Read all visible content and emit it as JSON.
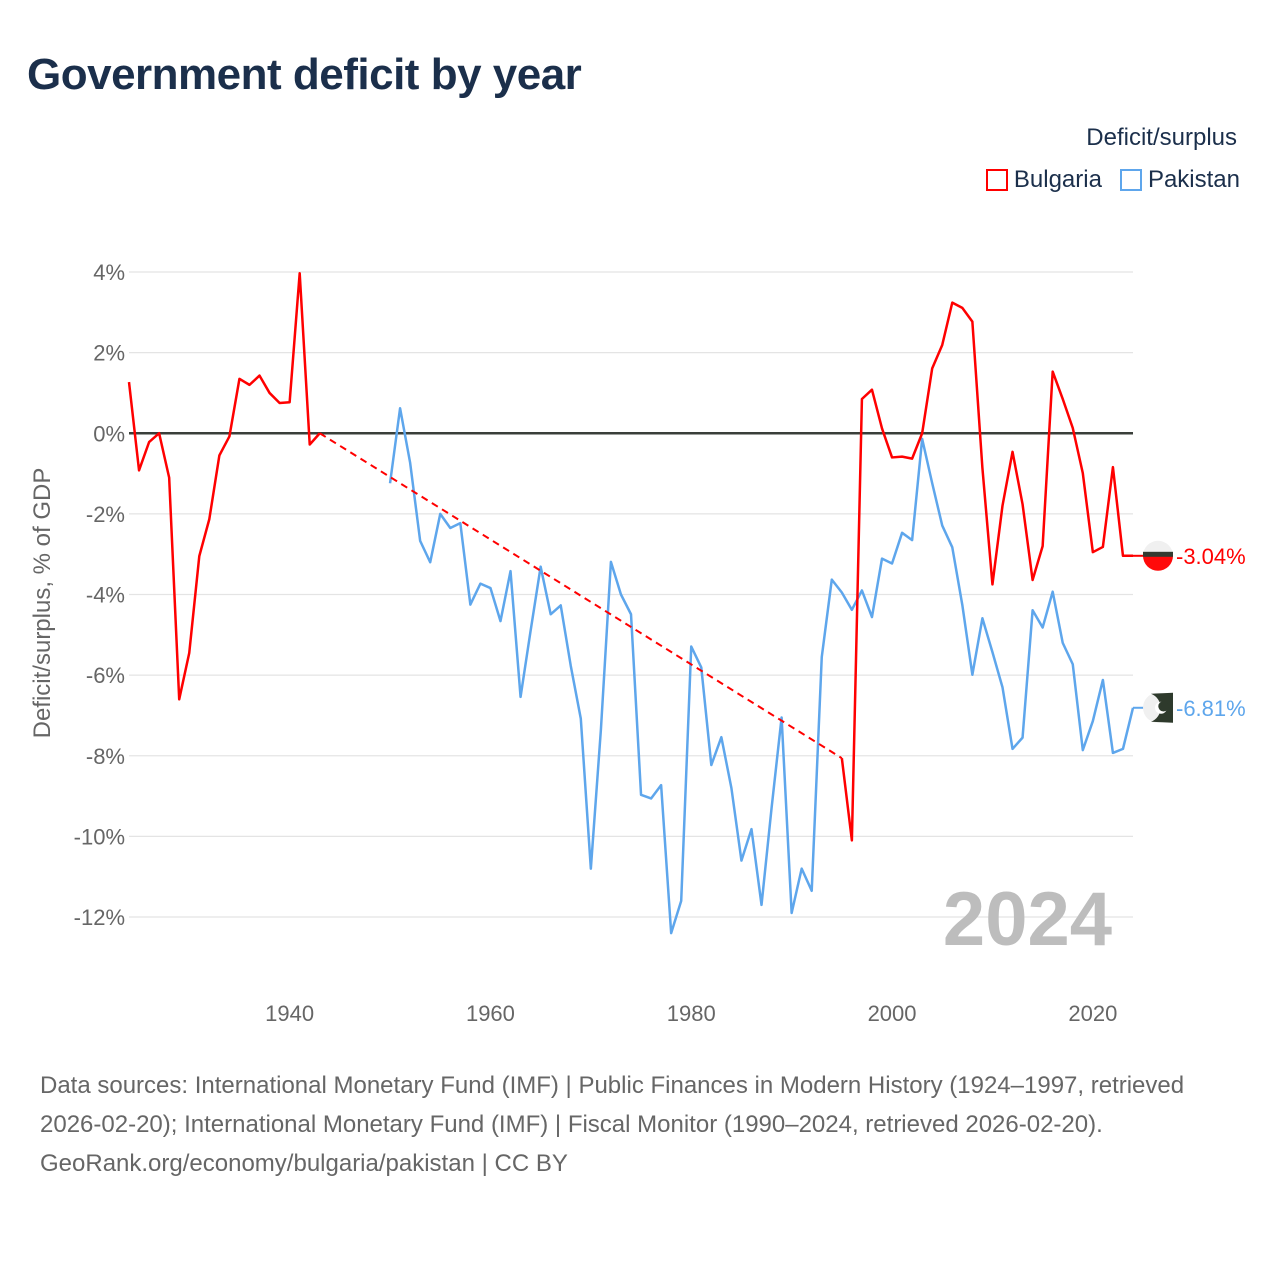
{
  "title": "Government deficit by year",
  "legend": {
    "title": "Deficit/surplus",
    "items": [
      {
        "label": "Bulgaria",
        "color": "#ff0000"
      },
      {
        "label": "Pakistan",
        "color": "#5ea6ec"
      }
    ]
  },
  "chart_data": {
    "type": "line",
    "title": "Government deficit by year",
    "xlabel": "",
    "ylabel": "Deficit/surplus, % of GDP",
    "xlim": [
      1924,
      2024
    ],
    "ylim": [
      -12,
      4
    ],
    "x_ticks": [
      "1940",
      "1960",
      "1980",
      "2000",
      "2020"
    ],
    "x_tick_values": [
      1940,
      1960,
      1980,
      2000,
      2020
    ],
    "y_ticks": [
      "4%",
      "2%",
      "0%",
      "-2%",
      "-4%",
      "-6%",
      "-8%",
      "-10%",
      "-12%"
    ],
    "y_tick_values": [
      4,
      2,
      0,
      -2,
      -4,
      -6,
      -8,
      -10,
      -12
    ],
    "grid": true,
    "legend_position": "top-right",
    "year_annotation": "2024",
    "series": [
      {
        "name": "Bulgaria",
        "color": "#ff0000",
        "end_label": "-3.04%",
        "gap_interpolated": [
          1943,
          1995
        ],
        "points": [
          [
            1924,
            1.27
          ],
          [
            1925,
            -0.92
          ],
          [
            1926,
            -0.22
          ],
          [
            1927,
            0
          ],
          [
            1928,
            -1.1
          ],
          [
            1929,
            -6.6
          ],
          [
            1930,
            -5.45
          ],
          [
            1931,
            -3.05
          ],
          [
            1932,
            -2.13
          ],
          [
            1933,
            -0.55
          ],
          [
            1934,
            -0.08
          ],
          [
            1935,
            1.35
          ],
          [
            1936,
            1.2
          ],
          [
            1937,
            1.43
          ],
          [
            1938,
            1.0
          ],
          [
            1939,
            0.75
          ],
          [
            1940,
            0.77
          ],
          [
            1941,
            3.97
          ],
          [
            1942,
            -0.28
          ],
          [
            1943,
            0.0
          ],
          [
            1995,
            -8.06
          ],
          [
            1996,
            -10.1
          ],
          [
            1997,
            0.85
          ],
          [
            1998,
            1.08
          ],
          [
            1999,
            0.12
          ],
          [
            2000,
            -0.6
          ],
          [
            2001,
            -0.58
          ],
          [
            2002,
            -0.63
          ],
          [
            2003,
            0.0
          ],
          [
            2004,
            1.61
          ],
          [
            2005,
            2.19
          ],
          [
            2006,
            3.24
          ],
          [
            2007,
            3.11
          ],
          [
            2008,
            2.77
          ],
          [
            2009,
            -0.86
          ],
          [
            2010,
            -3.75
          ],
          [
            2011,
            -1.8
          ],
          [
            2012,
            -0.46
          ],
          [
            2013,
            -1.76
          ],
          [
            2014,
            -3.64
          ],
          [
            2015,
            -2.8
          ],
          [
            2016,
            1.53
          ],
          [
            2017,
            0.85
          ],
          [
            2018,
            0.13
          ],
          [
            2019,
            -0.99
          ],
          [
            2020,
            -2.95
          ],
          [
            2021,
            -2.82
          ],
          [
            2022,
            -0.84
          ],
          [
            2023,
            -3.04
          ],
          [
            2024,
            -3.04
          ]
        ]
      },
      {
        "name": "Pakistan",
        "color": "#5ea6ec",
        "end_label": "-6.81%",
        "points": [
          [
            1950,
            -1.24
          ],
          [
            1951,
            0.62
          ],
          [
            1952,
            -0.73
          ],
          [
            1953,
            -2.67
          ],
          [
            1954,
            -3.2
          ],
          [
            1955,
            -2.0
          ],
          [
            1956,
            -2.35
          ],
          [
            1957,
            -2.23
          ],
          [
            1958,
            -4.25
          ],
          [
            1959,
            -3.73
          ],
          [
            1960,
            -3.84
          ],
          [
            1961,
            -4.66
          ],
          [
            1962,
            -3.42
          ],
          [
            1963,
            -6.54
          ],
          [
            1964,
            -4.9
          ],
          [
            1965,
            -3.31
          ],
          [
            1966,
            -4.49
          ],
          [
            1967,
            -4.27
          ],
          [
            1968,
            -5.77
          ],
          [
            1969,
            -7.08
          ],
          [
            1970,
            -10.8
          ],
          [
            1971,
            -7.36
          ],
          [
            1972,
            -3.19
          ],
          [
            1973,
            -4.0
          ],
          [
            1974,
            -4.49
          ],
          [
            1975,
            -8.97
          ],
          [
            1976,
            -9.06
          ],
          [
            1977,
            -8.73
          ],
          [
            1978,
            -12.4
          ],
          [
            1979,
            -11.6
          ],
          [
            1980,
            -5.29
          ],
          [
            1981,
            -5.81
          ],
          [
            1982,
            -8.23
          ],
          [
            1983,
            -7.54
          ],
          [
            1984,
            -8.8
          ],
          [
            1985,
            -10.6
          ],
          [
            1986,
            -9.82
          ],
          [
            1987,
            -11.7
          ],
          [
            1988,
            -9.3
          ],
          [
            1989,
            -7.05
          ],
          [
            1990,
            -11.9
          ],
          [
            1991,
            -10.8
          ],
          [
            1992,
            -11.35
          ],
          [
            1993,
            -5.55
          ],
          [
            1994,
            -3.63
          ],
          [
            1995,
            -3.95
          ],
          [
            1996,
            -4.38
          ],
          [
            1997,
            -3.9
          ],
          [
            1998,
            -4.56
          ],
          [
            1999,
            -3.11
          ],
          [
            2000,
            -3.23
          ],
          [
            2001,
            -2.47
          ],
          [
            2002,
            -2.65
          ],
          [
            2003,
            -0.14
          ],
          [
            2004,
            -1.24
          ],
          [
            2005,
            -2.29
          ],
          [
            2006,
            -2.83
          ],
          [
            2007,
            -4.26
          ],
          [
            2008,
            -5.99
          ],
          [
            2009,
            -4.59
          ],
          [
            2010,
            -5.43
          ],
          [
            2011,
            -6.3
          ],
          [
            2012,
            -7.83
          ],
          [
            2013,
            -7.55
          ],
          [
            2014,
            -4.39
          ],
          [
            2015,
            -4.82
          ],
          [
            2016,
            -3.93
          ],
          [
            2017,
            -5.2
          ],
          [
            2018,
            -5.73
          ],
          [
            2019,
            -7.86
          ],
          [
            2020,
            -7.14
          ],
          [
            2021,
            -6.12
          ],
          [
            2022,
            -7.93
          ],
          [
            2023,
            -7.83
          ],
          [
            2024,
            -6.81
          ]
        ]
      }
    ]
  },
  "footer": {
    "sources": "Data sources: International Monetary Fund (IMF) | Public Finances in Modern History (1924–1997, retrieved 2026-02-20); International Monetary Fund (IMF) | Fiscal Monitor (1990–2024, retrieved 2026-02-20).",
    "credit": "GeoRank.org/economy/bulgaria/pakistan | CC BY"
  }
}
